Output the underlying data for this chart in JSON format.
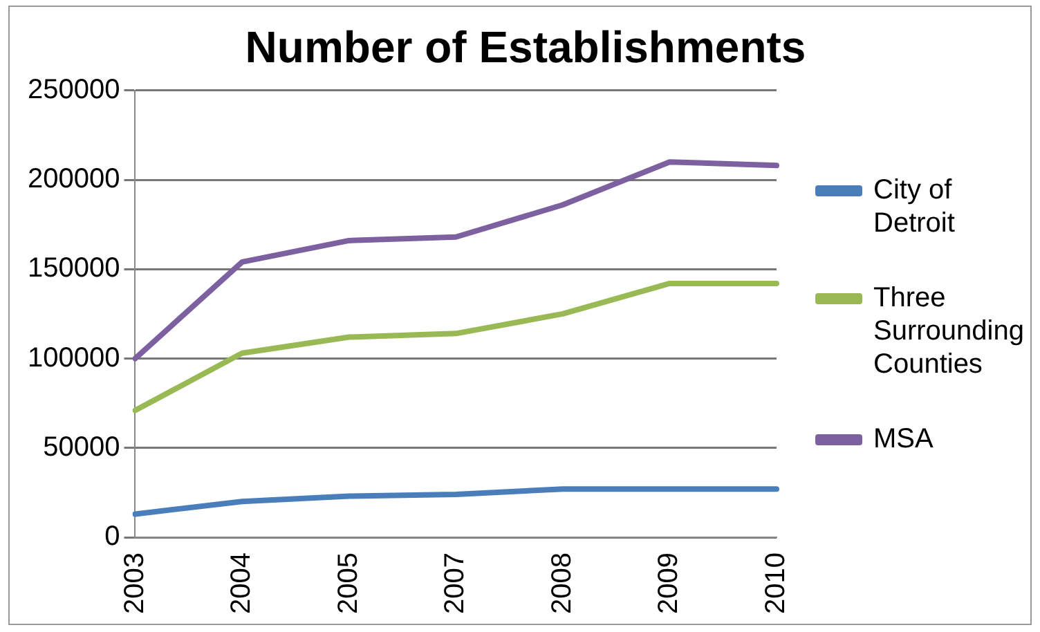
{
  "chart_data": {
    "type": "line",
    "title": "Number of Establishments",
    "categories": [
      "2003",
      "2004",
      "2005",
      "2007",
      "2008",
      "2009",
      "2010"
    ],
    "series": [
      {
        "name": "City of Detroit",
        "color": "#4a7ebb",
        "values": [
          13000,
          20000,
          23000,
          24000,
          27000,
          27000,
          27000
        ]
      },
      {
        "name": "Three Surrounding Counties",
        "color": "#98b954",
        "values": [
          71000,
          103000,
          112000,
          114000,
          125000,
          142000,
          142000
        ]
      },
      {
        "name": "MSA",
        "color": "#7d60a0",
        "values": [
          100000,
          154000,
          166000,
          168000,
          186000,
          210000,
          208000
        ]
      }
    ],
    "ylim": [
      0,
      250000
    ],
    "yticks": [
      0,
      50000,
      100000,
      150000,
      200000,
      250000
    ],
    "grid": "y",
    "legend": "right",
    "marker": "none",
    "line_style": "solid"
  }
}
